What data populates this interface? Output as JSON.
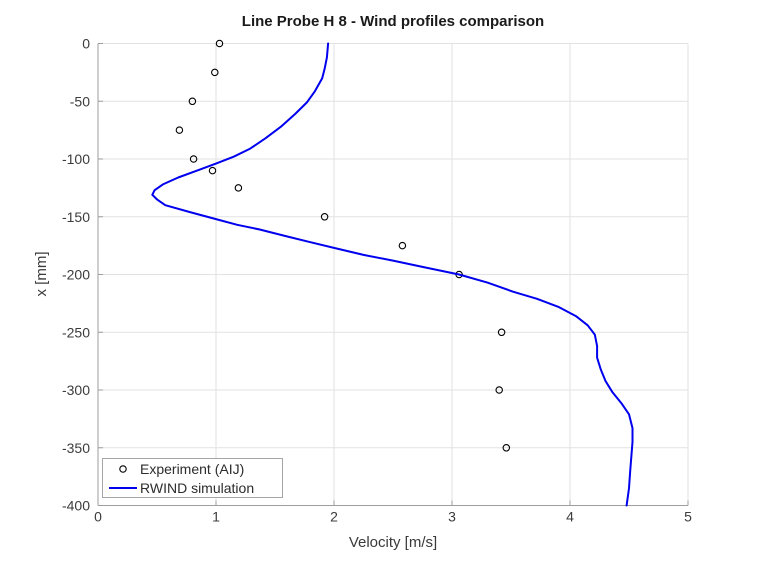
{
  "chart": {
    "title": "Line Probe H 8 - Wind profiles comparison",
    "xlabel": "Velocity [m/s]",
    "ylabel": "x [mm]"
  },
  "legend": {
    "items": [
      {
        "label": "Experiment (AIJ)",
        "marker": "open-circle"
      },
      {
        "label": "RWIND simulation",
        "marker": "blue-line"
      }
    ]
  },
  "colors": {
    "line": "#0000ee",
    "marker": "#000000",
    "grid": "#e2e2e2",
    "axis": "#9e9e9e",
    "tick_text": "#3c3c3c",
    "background": "#ffffff"
  },
  "chart_data": {
    "type": "line+scatter",
    "title": "Line Probe H 8 - Wind profiles comparison",
    "xlabel": "Velocity [m/s]",
    "ylabel": "x [mm]",
    "xlim": [
      0,
      5
    ],
    "ylim": [
      -400,
      0
    ],
    "xticks": [
      0,
      1,
      2,
      3,
      4,
      5
    ],
    "yticks": [
      0,
      -50,
      -100,
      -150,
      -200,
      -250,
      -300,
      -350,
      -400
    ],
    "grid": true,
    "legend_position": "bottom-left",
    "series": [
      {
        "name": "Experiment (AIJ)",
        "type": "scatter",
        "marker": "open-circle",
        "color": "#000000",
        "points": [
          [
            1.03,
            0
          ],
          [
            0.99,
            -25
          ],
          [
            0.8,
            -50
          ],
          [
            0.69,
            -75
          ],
          [
            0.81,
            -100
          ],
          [
            0.97,
            -110
          ],
          [
            1.19,
            -125
          ],
          [
            1.92,
            -150
          ],
          [
            2.58,
            -175
          ],
          [
            3.06,
            -200
          ],
          [
            3.42,
            -250
          ],
          [
            3.4,
            -300
          ],
          [
            3.46,
            -350
          ]
        ]
      },
      {
        "name": "RWIND simulation",
        "type": "line",
        "color": "#0000ee",
        "points": [
          [
            1.95,
            0
          ],
          [
            1.94,
            -12
          ],
          [
            1.92,
            -22
          ],
          [
            1.9,
            -30
          ],
          [
            1.84,
            -41
          ],
          [
            1.77,
            -51
          ],
          [
            1.67,
            -61
          ],
          [
            1.55,
            -72
          ],
          [
            1.42,
            -82
          ],
          [
            1.29,
            -91
          ],
          [
            1.15,
            -98
          ],
          [
            1.0,
            -104
          ],
          [
            0.84,
            -110
          ],
          [
            0.68,
            -116
          ],
          [
            0.55,
            -122
          ],
          [
            0.48,
            -127
          ],
          [
            0.46,
            -131
          ],
          [
            0.5,
            -135
          ],
          [
            0.57,
            -140
          ],
          [
            0.78,
            -146
          ],
          [
            1.0,
            -152
          ],
          [
            1.18,
            -157
          ],
          [
            1.37,
            -161
          ],
          [
            1.6,
            -167
          ],
          [
            1.8,
            -172
          ],
          [
            2.0,
            -177
          ],
          [
            2.25,
            -183
          ],
          [
            2.5,
            -188
          ],
          [
            2.78,
            -194
          ],
          [
            3.06,
            -200
          ],
          [
            3.3,
            -207
          ],
          [
            3.52,
            -215
          ],
          [
            3.72,
            -221
          ],
          [
            3.9,
            -228
          ],
          [
            4.05,
            -236
          ],
          [
            4.15,
            -244
          ],
          [
            4.21,
            -252
          ],
          [
            4.23,
            -262
          ],
          [
            4.23,
            -272
          ],
          [
            4.26,
            -282
          ],
          [
            4.3,
            -292
          ],
          [
            4.36,
            -302
          ],
          [
            4.44,
            -312
          ],
          [
            4.5,
            -321
          ],
          [
            4.53,
            -333
          ],
          [
            4.53,
            -345
          ],
          [
            4.52,
            -357
          ],
          [
            4.51,
            -370
          ],
          [
            4.5,
            -385
          ],
          [
            4.48,
            -400
          ]
        ]
      }
    ]
  }
}
